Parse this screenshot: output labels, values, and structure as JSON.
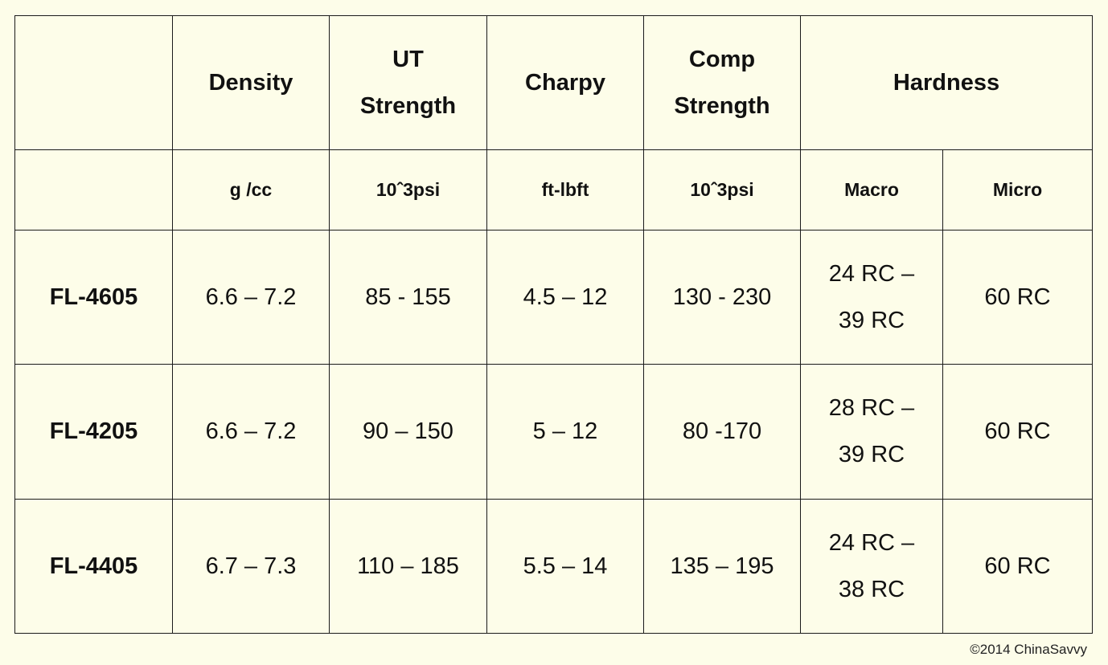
{
  "headers": {
    "density": "Density",
    "ut_line1": "UT",
    "ut_line2": "Strength",
    "charpy": "Charpy",
    "comp_line1": "Comp",
    "comp_line2": "Strength",
    "hardness": "Hardness"
  },
  "units": {
    "density": "g /cc",
    "ut": "10ˆ3psi",
    "charpy": "ft-lbft",
    "comp": "10ˆ3psi",
    "macro": "Macro",
    "micro": "Micro"
  },
  "rows": [
    {
      "name": "FL-4605",
      "density": "6.6 – 7.2",
      "ut": "85 - 155",
      "charpy": "4.5 – 12",
      "comp": "130 - 230",
      "macro_line1": "24 RC –",
      "macro_line2": "39 RC",
      "micro": "60 RC"
    },
    {
      "name": "FL-4205",
      "density": "6.6 – 7.2",
      "ut": "90 – 150",
      "charpy": "5 – 12",
      "comp": "80 -170",
      "macro_line1": "28 RC –",
      "macro_line2": "39 RC",
      "micro": "60 RC"
    },
    {
      "name": "FL-4405",
      "density": "6.7 – 7.3",
      "ut": "110 – 185",
      "charpy": "5.5 – 14",
      "comp": "135 – 195",
      "macro_line1": "24 RC –",
      "macro_line2": "38 RC",
      "micro": "60 RC"
    }
  ],
  "footer": "©2014 ChinaSavvy"
}
